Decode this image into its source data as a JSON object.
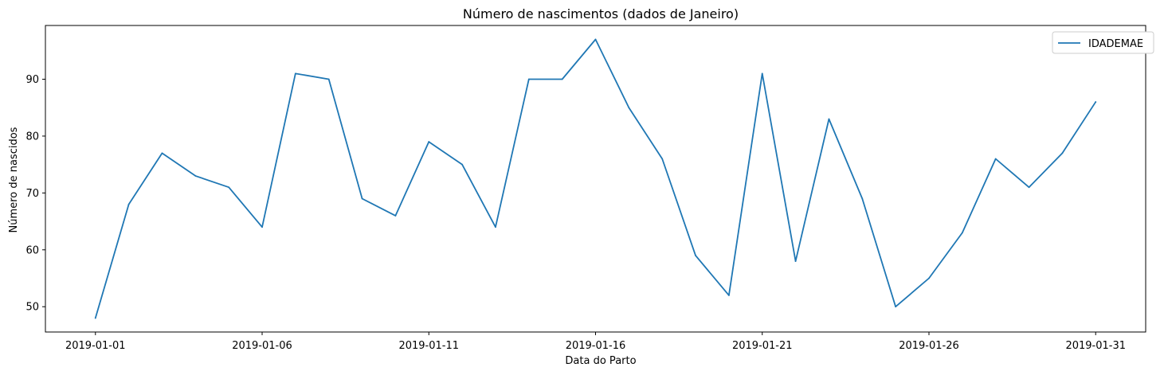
{
  "chart_data": {
    "type": "line",
    "title": "Número de nascimentos (dados de Janeiro)",
    "xlabel": "Data do Parto",
    "ylabel": "Número de nascidos",
    "x": [
      "2019-01-01",
      "2019-01-02",
      "2019-01-03",
      "2019-01-04",
      "2019-01-05",
      "2019-01-06",
      "2019-01-07",
      "2019-01-08",
      "2019-01-09",
      "2019-01-10",
      "2019-01-11",
      "2019-01-12",
      "2019-01-13",
      "2019-01-14",
      "2019-01-15",
      "2019-01-16",
      "2019-01-17",
      "2019-01-18",
      "2019-01-19",
      "2019-01-20",
      "2019-01-21",
      "2019-01-22",
      "2019-01-23",
      "2019-01-24",
      "2019-01-25",
      "2019-01-26",
      "2019-01-27",
      "2019-01-28",
      "2019-01-29",
      "2019-01-30",
      "2019-01-31"
    ],
    "series": [
      {
        "name": "IDADEMAE",
        "color": "#1f77b4",
        "values": [
          48,
          68,
          77,
          73,
          71,
          64,
          91,
          90,
          69,
          66,
          79,
          75,
          64,
          90,
          90,
          97,
          85,
          76,
          59,
          52,
          91,
          58,
          83,
          69,
          50,
          55,
          63,
          76,
          71,
          77,
          86
        ]
      }
    ],
    "x_ticks": [
      "2019-01-01",
      "2019-01-06",
      "2019-01-11",
      "2019-01-16",
      "2019-01-21",
      "2019-01-26",
      "2019-01-31"
    ],
    "y_ticks": [
      50,
      60,
      70,
      80,
      90
    ],
    "xlim": [
      "2018-12-30 12:00",
      "2019-02-01 12:00"
    ],
    "ylim": [
      45.55,
      99.45
    ],
    "grid": false,
    "legend": "top-right"
  }
}
